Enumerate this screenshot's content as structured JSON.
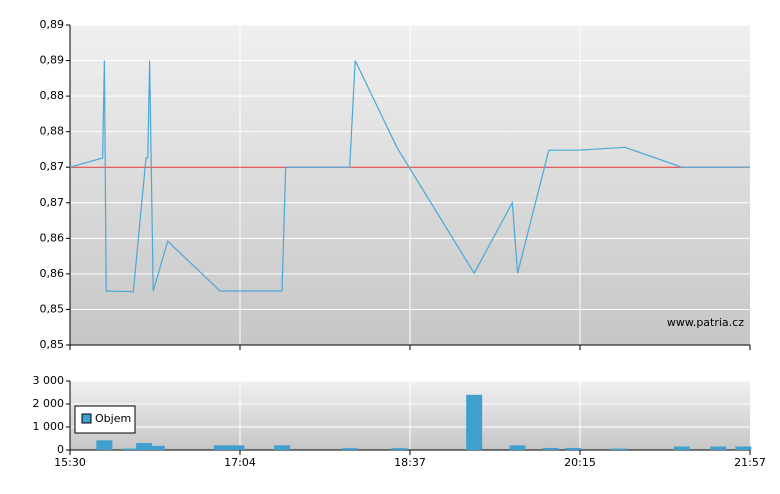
{
  "chart_data": [
    {
      "type": "line",
      "annotation": "www.patria.cz",
      "reference_line": {
        "value": 0.873,
        "color": "#e03030"
      },
      "xlim": [
        930,
        1317
      ],
      "ylim": [
        0.848,
        0.893
      ],
      "yticks": [
        {
          "value": 0.848,
          "label": "0,85"
        },
        {
          "value": 0.853,
          "label": "0,85"
        },
        {
          "value": 0.858,
          "label": "0,86"
        },
        {
          "value": 0.863,
          "label": "0,86"
        },
        {
          "value": 0.868,
          "label": "0,87"
        },
        {
          "value": 0.873,
          "label": "0,87"
        },
        {
          "value": 0.878,
          "label": "0,88"
        },
        {
          "value": 0.883,
          "label": "0,88"
        },
        {
          "value": 0.888,
          "label": "0,89"
        },
        {
          "value": 0.893,
          "label": "0,89"
        }
      ],
      "grid": true,
      "color": "#4aa8d8",
      "x": [
        930,
        948,
        949,
        950,
        965,
        972,
        973,
        974,
        976,
        984,
        1013,
        1047,
        1049,
        1084,
        1087,
        1110,
        1154,
        1176,
        1179,
        1197,
        1214,
        1242,
        1276,
        1317
      ],
      "values": [
        0.873,
        0.8743,
        0.888,
        0.8556,
        0.8555,
        0.8743,
        0.8743,
        0.888,
        0.8556,
        0.8626,
        0.8556,
        0.8556,
        0.873,
        0.873,
        0.888,
        0.8757,
        0.8581,
        0.868,
        0.8581,
        0.8754,
        0.8754,
        0.8758,
        0.873,
        0.873
      ]
    },
    {
      "type": "bar",
      "xlim": [
        930,
        1317
      ],
      "xticks": [
        {
          "value": 930,
          "label": "15:30"
        },
        {
          "value": 1024,
          "label": "17:04"
        },
        {
          "value": 1117,
          "label": "18:37"
        },
        {
          "value": 1215,
          "label": "20:15"
        },
        {
          "value": 1317,
          "label": "21:57"
        }
      ],
      "ylim": [
        0,
        3000
      ],
      "yticks": [
        0,
        {
          "value": 1000,
          "label": "1 000"
        },
        {
          "value": 2000,
          "label": "2 000"
        },
        {
          "value": 3000,
          "label": "3 000"
        }
      ],
      "grid": true,
      "legend": "bottom-left",
      "series": [
        {
          "name": "Objem",
          "color": "#3fa0cf",
          "x": [
            949,
            963,
            971,
            978,
            1014,
            1022,
            1047,
            1084,
            1111,
            1154,
            1179,
            1198,
            1211,
            1238,
            1276,
            1298,
            1313
          ],
          "values": [
            420,
            60,
            300,
            180,
            200,
            200,
            200,
            80,
            80,
            2400,
            200,
            90,
            90,
            60,
            150,
            150,
            150
          ]
        }
      ]
    }
  ]
}
